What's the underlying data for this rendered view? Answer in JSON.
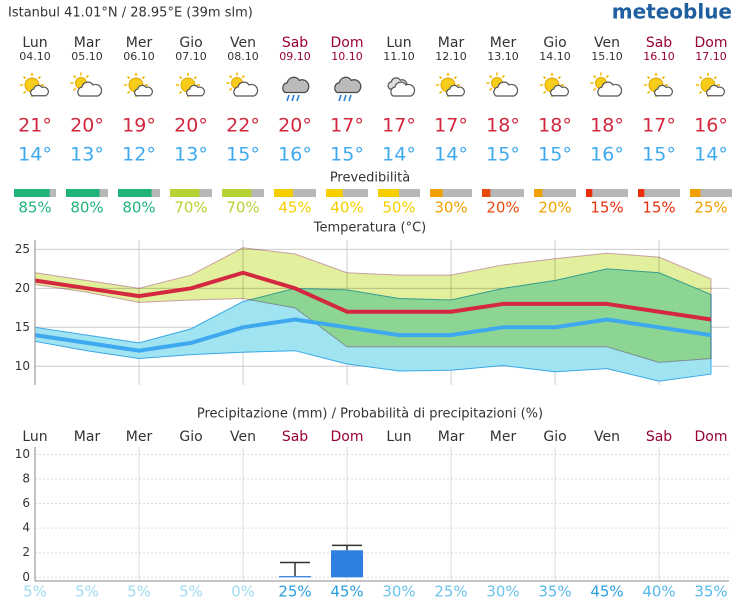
{
  "header": {
    "location": "Istanbul  41.01°N / 28.95°E (39m slm)",
    "brand": "meteoblue"
  },
  "days": {
    "dates": [
      "04.10",
      "05.10",
      "06.10",
      "07.10",
      "08.10",
      "09.10",
      "10.10",
      "11.10",
      "12.10",
      "13.10",
      "14.10",
      "15.10",
      "16.10",
      "17.10"
    ],
    "icons": [
      "sun-cloud",
      "cloud-sun",
      "sun-cloud",
      "sun-cloud",
      "cloud-sun",
      "rain",
      "rain",
      "cloud",
      "sun-cloud",
      "cloud-sun",
      "sun-cloud",
      "cloud-sun",
      "sun-cloud",
      "sun-cloud"
    ]
  },
  "predictability": {
    "title": "Prevedibilità",
    "values": [
      85,
      80,
      80,
      70,
      70,
      45,
      40,
      50,
      30,
      20,
      20,
      15,
      15,
      25
    ],
    "value_labels": [
      "85%",
      "80%",
      "80%",
      "70%",
      "70%",
      "45%",
      "40%",
      "50%",
      "30%",
      "20%",
      "20%",
      "15%",
      "15%",
      "25%"
    ],
    "colors": [
      "#1fb37a",
      "#1fb37a",
      "#1fb37a",
      "#b5d334",
      "#b5d334",
      "#f5cf00",
      "#f5cf00",
      "#f5cf00",
      "#f0a000",
      "#e84a0c",
      "#f0a000",
      "#e8300c",
      "#e8300c",
      "#f0a000"
    ]
  },
  "chart_data": [
    {
      "type": "line",
      "title": "Temperatura (°C)",
      "ylim": [
        7.6,
        26.2
      ],
      "yticks": [
        10,
        15,
        20,
        25
      ],
      "grid": true,
      "series": [
        {
          "color": "#d3283f",
          "values": [
            21,
            20,
            19,
            20,
            22,
            20,
            17,
            17,
            17,
            18,
            18,
            18,
            17,
            16
          ],
          "value_labels": [
            "21°",
            "20°",
            "19°",
            "20°",
            "22°",
            "20°",
            "17°",
            "17°",
            "17°",
            "18°",
            "18°",
            "18°",
            "17°",
            "16°"
          ]
        },
        {
          "color": "#3fa9f0",
          "values": [
            14,
            13,
            12,
            13,
            15,
            16,
            15,
            14,
            14,
            15,
            15,
            16,
            15,
            14
          ],
          "value_labels": [
            "14°",
            "13°",
            "12°",
            "13°",
            "15°",
            "16°",
            "15°",
            "14°",
            "14°",
            "15°",
            "15°",
            "16°",
            "15°",
            "14°"
          ]
        }
      ],
      "bands": [
        {
          "color": "#9fe4f0",
          "upper": [
            15,
            14,
            13,
            14.8,
            18.3,
            20,
            19.8,
            18.7,
            18.5,
            20,
            21,
            22.5,
            22,
            19.2
          ],
          "lower": [
            13.2,
            12,
            11,
            11.5,
            11.8,
            12,
            10.3,
            9.4,
            9.5,
            10.1,
            9.3,
            9.7,
            8.1,
            9
          ]
        },
        {
          "color": "#e2ef9c",
          "upper": [
            22,
            21,
            20,
            21.7,
            25.2,
            24.4,
            22,
            21.7,
            21.7,
            23,
            23.8,
            24.5,
            24,
            21.2
          ],
          "lower": [
            20.5,
            19.5,
            18.2,
            18.5,
            18.7,
            17.5,
            12.5,
            12.5,
            12.5,
            12.5,
            12.5,
            12.5,
            10.5,
            11
          ]
        }
      ]
    },
    {
      "type": "bar",
      "title": "Precipitazione (mm) / Probabilità di precipitazioni (%)",
      "categories": [
        "Lun",
        "Mar",
        "Mer",
        "Gio",
        "Ven",
        "Sab",
        "Dom",
        "Lun",
        "Mar",
        "Mer",
        "Gio",
        "Ven",
        "Sab",
        "Dom"
      ],
      "category_colors": [
        "#333",
        "#333",
        "#333",
        "#333",
        "#333",
        "#990033",
        "#990033",
        "#333",
        "#333",
        "#333",
        "#333",
        "#333",
        "#990033",
        "#990033"
      ],
      "ylim": [
        -0.3,
        10.6
      ],
      "yticks": [
        0,
        2,
        4,
        6,
        8,
        10
      ],
      "grid": true,
      "series": [
        {
          "color": "#2f80e0",
          "values": [
            0,
            0,
            0,
            0,
            0,
            0.1,
            2.2,
            0,
            0,
            0,
            0,
            0,
            0,
            0
          ],
          "error_high": [
            null,
            null,
            null,
            null,
            null,
            1.2,
            2.6,
            null,
            null,
            null,
            null,
            null,
            null,
            null
          ]
        }
      ],
      "probability": {
        "values": [
          5,
          5,
          5,
          5,
          0,
          25,
          45,
          30,
          25,
          30,
          35,
          45,
          40,
          35
        ],
        "value_labels": [
          "5%",
          "5%",
          "5%",
          "5%",
          "0%",
          "25%",
          "45%",
          "30%",
          "25%",
          "30%",
          "35%",
          "45%",
          "40%",
          "35%"
        ],
        "colors": [
          "#9fdcef",
          "#9fdcef",
          "#9fdcef",
          "#9fdcef",
          "#9fdcef",
          "#2a9ee0",
          "#2a9ee0",
          "#6cc4ec",
          "#6cc4ec",
          "#6cc4ec",
          "#55b8ea",
          "#2a9ee0",
          "#55b8ea",
          "#55b8ea"
        ]
      }
    }
  ]
}
